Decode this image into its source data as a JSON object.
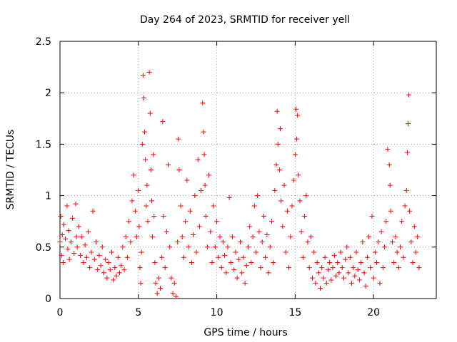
{
  "chart_data": {
    "type": "scatter",
    "title": "Day 264 of 2023, SRMTID for receiver yell",
    "xlabel": "GPS time / hours",
    "ylabel": "SRMTID / TECUs",
    "xlim": [
      0,
      24
    ],
    "ylim": [
      0,
      2.5
    ],
    "xticks": [
      0,
      5,
      10,
      15,
      20
    ],
    "xtick_labels": [
      "0",
      "5",
      "10",
      "15",
      "20"
    ],
    "yticks": [
      0,
      0.5,
      1,
      1.5,
      2,
      2.5
    ],
    "ytick_labels": [
      "0",
      "0.5",
      "1",
      "1.5",
      "2",
      "2.5"
    ],
    "grid": true,
    "marker": "plus",
    "color": "#ff0000",
    "series": [
      {
        "name": "SRMTID",
        "points": [
          [
            0.0,
            0.55
          ],
          [
            0.05,
            0.8
          ],
          [
            0.1,
            0.42
          ],
          [
            0.15,
            0.62
          ],
          [
            0.2,
            0.35
          ],
          [
            0.25,
            0.72
          ],
          [
            0.35,
            0.58
          ],
          [
            0.45,
            0.9
          ],
          [
            0.5,
            0.48
          ],
          [
            0.55,
            0.66
          ],
          [
            0.6,
            0.38
          ],
          [
            0.7,
            0.55
          ],
          [
            0.8,
            0.78
          ],
          [
            0.9,
            0.44
          ],
          [
            1.0,
            0.92
          ],
          [
            1.05,
            0.6
          ],
          [
            1.1,
            0.5
          ],
          [
            1.2,
            0.7
          ],
          [
            1.3,
            0.42
          ],
          [
            1.4,
            0.6
          ],
          [
            1.5,
            0.35
          ],
          [
            1.6,
            0.52
          ],
          [
            1.7,
            0.4
          ],
          [
            1.8,
            0.65
          ],
          [
            1.9,
            0.3
          ],
          [
            2.0,
            0.45
          ],
          [
            2.1,
            0.85
          ],
          [
            2.2,
            0.38
          ],
          [
            2.3,
            0.55
          ],
          [
            2.4,
            0.28
          ],
          [
            2.5,
            0.42
          ],
          [
            2.6,
            0.32
          ],
          [
            2.7,
            0.5
          ],
          [
            2.8,
            0.25
          ],
          [
            2.9,
            0.38
          ],
          [
            3.0,
            0.2
          ],
          [
            3.1,
            0.35
          ],
          [
            3.2,
            0.28
          ],
          [
            3.3,
            0.45
          ],
          [
            3.4,
            0.18
          ],
          [
            3.5,
            0.3
          ],
          [
            3.6,
            0.22
          ],
          [
            3.7,
            0.4
          ],
          [
            3.8,
            0.25
          ],
          [
            3.9,
            0.32
          ],
          [
            4.0,
            0.5
          ],
          [
            4.1,
            0.28
          ],
          [
            4.2,
            0.6
          ],
          [
            4.3,
            0.4
          ],
          [
            4.4,
            0.75
          ],
          [
            4.5,
            0.55
          ],
          [
            4.6,
            0.95
          ],
          [
            4.7,
            1.2
          ],
          [
            4.8,
            0.85
          ],
          [
            4.9,
            0.6
          ],
          [
            5.0,
            1.05
          ],
          [
            5.05,
            0.7
          ],
          [
            5.1,
            0.3
          ],
          [
            5.15,
            0.15
          ],
          [
            5.2,
            0.45
          ],
          [
            5.25,
            1.5
          ],
          [
            5.3,
            2.17
          ],
          [
            5.35,
            1.95
          ],
          [
            5.4,
            1.62
          ],
          [
            5.45,
            1.35
          ],
          [
            5.5,
            0.9
          ],
          [
            5.55,
            1.1
          ],
          [
            5.6,
            0.75
          ],
          [
            5.7,
            2.2
          ],
          [
            5.75,
            1.8
          ],
          [
            5.8,
            1.25
          ],
          [
            5.85,
            0.95
          ],
          [
            5.9,
            0.6
          ],
          [
            5.95,
            1.4
          ],
          [
            6.0,
            0.8
          ],
          [
            6.05,
            0.35
          ],
          [
            6.1,
            0.15
          ],
          [
            6.2,
            0.05
          ],
          [
            6.3,
            0.2
          ],
          [
            6.4,
            0.1
          ],
          [
            6.5,
            0.4
          ],
          [
            6.55,
            1.72
          ],
          [
            6.6,
            0.8
          ],
          [
            6.7,
            0.3
          ],
          [
            6.8,
            0.65
          ],
          [
            6.9,
            1.3
          ],
          [
            7.0,
            0.5
          ],
          [
            7.1,
            0.2
          ],
          [
            7.2,
            0.05
          ],
          [
            7.3,
            0.15
          ],
          [
            7.4,
            0.02
          ],
          [
            7.5,
            0.55
          ],
          [
            7.55,
            1.55
          ],
          [
            7.6,
            1.25
          ],
          [
            7.7,
            0.9
          ],
          [
            7.8,
            0.6
          ],
          [
            7.9,
            0.4
          ],
          [
            8.0,
            0.75
          ],
          [
            8.1,
            1.15
          ],
          [
            8.2,
            0.5
          ],
          [
            8.3,
            0.85
          ],
          [
            8.4,
            0.35
          ],
          [
            8.5,
            0.62
          ],
          [
            8.6,
            1.0
          ],
          [
            8.7,
            0.45
          ],
          [
            8.8,
            1.35
          ],
          [
            8.9,
            0.7
          ],
          [
            9.0,
            1.05
          ],
          [
            9.1,
            1.9
          ],
          [
            9.15,
            1.62
          ],
          [
            9.2,
            1.4
          ],
          [
            9.25,
            1.1
          ],
          [
            9.3,
            0.8
          ],
          [
            9.4,
            0.5
          ],
          [
            9.5,
            1.2
          ],
          [
            9.6,
            0.65
          ],
          [
            9.7,
            0.35
          ],
          [
            9.8,
            0.9
          ],
          [
            9.9,
            0.5
          ],
          [
            10.0,
            0.75
          ],
          [
            10.1,
            0.4
          ],
          [
            10.2,
            0.6
          ],
          [
            10.3,
            0.3
          ],
          [
            10.4,
            0.55
          ],
          [
            10.5,
            0.42
          ],
          [
            10.6,
            0.25
          ],
          [
            10.7,
            0.5
          ],
          [
            10.8,
            0.98
          ],
          [
            10.9,
            0.35
          ],
          [
            11.0,
            0.6
          ],
          [
            11.1,
            0.28
          ],
          [
            11.2,
            0.45
          ],
          [
            11.3,
            0.2
          ],
          [
            11.4,
            0.38
          ],
          [
            11.5,
            0.55
          ],
          [
            11.6,
            0.25
          ],
          [
            11.7,
            0.4
          ],
          [
            11.8,
            0.15
          ],
          [
            11.9,
            0.32
          ],
          [
            12.0,
            0.5
          ],
          [
            12.1,
            0.7
          ],
          [
            12.2,
            0.35
          ],
          [
            12.3,
            0.6
          ],
          [
            12.4,
            0.9
          ],
          [
            12.5,
            0.45
          ],
          [
            12.6,
            1.0
          ],
          [
            12.7,
            0.65
          ],
          [
            12.8,
            0.3
          ],
          [
            12.9,
            0.55
          ],
          [
            13.0,
            0.8
          ],
          [
            13.1,
            0.4
          ],
          [
            13.2,
            0.62
          ],
          [
            13.3,
            0.25
          ],
          [
            13.4,
            0.5
          ],
          [
            13.5,
            0.75
          ],
          [
            13.6,
            0.35
          ],
          [
            13.7,
            1.05
          ],
          [
            13.8,
            1.3
          ],
          [
            13.85,
            1.82
          ],
          [
            13.9,
            1.5
          ],
          [
            14.0,
            1.25
          ],
          [
            14.05,
            1.65
          ],
          [
            14.1,
            0.95
          ],
          [
            14.2,
            0.7
          ],
          [
            14.3,
            1.1
          ],
          [
            14.4,
            0.45
          ],
          [
            14.5,
            0.85
          ],
          [
            14.6,
            0.3
          ],
          [
            14.7,
            0.6
          ],
          [
            14.8,
            0.9
          ],
          [
            14.9,
            1.15
          ],
          [
            15.0,
            1.4
          ],
          [
            15.05,
            1.84
          ],
          [
            15.1,
            1.55
          ],
          [
            15.15,
            1.78
          ],
          [
            15.2,
            1.2
          ],
          [
            15.3,
            0.95
          ],
          [
            15.4,
            0.65
          ],
          [
            15.5,
            0.4
          ],
          [
            15.6,
            0.8
          ],
          [
            15.7,
            1.0
          ],
          [
            15.8,
            0.55
          ],
          [
            15.9,
            0.3
          ],
          [
            16.0,
            0.6
          ],
          [
            16.1,
            0.2
          ],
          [
            16.2,
            0.45
          ],
          [
            16.3,
            0.15
          ],
          [
            16.4,
            0.35
          ],
          [
            16.5,
            0.25
          ],
          [
            16.6,
            0.1
          ],
          [
            16.7,
            0.3
          ],
          [
            16.8,
            0.2
          ],
          [
            16.9,
            0.4
          ],
          [
            17.0,
            0.15
          ],
          [
            17.1,
            0.28
          ],
          [
            17.2,
            0.35
          ],
          [
            17.3,
            0.18
          ],
          [
            17.4,
            0.3
          ],
          [
            17.5,
            0.42
          ],
          [
            17.6,
            0.22
          ],
          [
            17.7,
            0.35
          ],
          [
            17.8,
            0.25
          ],
          [
            17.9,
            0.45
          ],
          [
            18.0,
            0.3
          ],
          [
            18.1,
            0.2
          ],
          [
            18.2,
            0.38
          ],
          [
            18.3,
            0.5
          ],
          [
            18.4,
            0.25
          ],
          [
            18.5,
            0.4
          ],
          [
            18.6,
            0.15
          ],
          [
            18.7,
            0.3
          ],
          [
            18.8,
            0.22
          ],
          [
            18.9,
            0.45
          ],
          [
            19.0,
            0.28
          ],
          [
            19.1,
            0.18
          ],
          [
            19.2,
            0.35
          ],
          [
            19.3,
            0.55
          ],
          [
            19.4,
            0.25
          ],
          [
            19.5,
            0.12
          ],
          [
            19.6,
            0.4
          ],
          [
            19.7,
            0.6
          ],
          [
            19.8,
            0.3
          ],
          [
            19.9,
            0.8
          ],
          [
            20.0,
            0.2
          ],
          [
            20.1,
            0.45
          ],
          [
            20.2,
            0.35
          ],
          [
            20.3,
            0.55
          ],
          [
            20.4,
            0.15
          ],
          [
            20.5,
            0.65
          ],
          [
            20.6,
            0.3
          ],
          [
            20.7,
            0.5
          ],
          [
            20.8,
            0.75
          ],
          [
            20.9,
            1.45
          ],
          [
            21.0,
            1.3
          ],
          [
            21.05,
            1.1
          ],
          [
            21.1,
            0.85
          ],
          [
            21.2,
            0.55
          ],
          [
            21.3,
            0.35
          ],
          [
            21.4,
            0.6
          ],
          [
            21.5,
            0.45
          ],
          [
            21.6,
            0.3
          ],
          [
            21.7,
            0.5
          ],
          [
            21.8,
            0.75
          ],
          [
            21.9,
            0.4
          ],
          [
            22.0,
            0.9
          ],
          [
            22.1,
            1.05
          ],
          [
            22.15,
            1.42
          ],
          [
            22.2,
            1.7
          ],
          [
            22.25,
            1.98
          ],
          [
            22.3,
            0.85
          ],
          [
            22.4,
            0.55
          ],
          [
            22.5,
            0.35
          ],
          [
            22.6,
            0.7
          ],
          [
            22.7,
            0.45
          ],
          [
            22.8,
            0.6
          ],
          [
            22.9,
            0.3
          ]
        ]
      }
    ]
  }
}
